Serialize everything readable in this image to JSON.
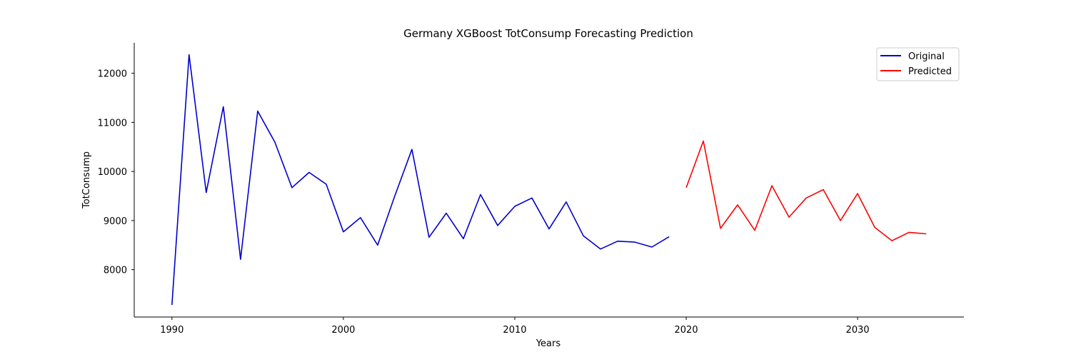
{
  "chart_data": {
    "type": "line",
    "title": "Germany XGBoost TotConsump Forecasting Prediction",
    "xlabel": "Years",
    "ylabel": "TotConsump",
    "xlim": [
      1987.8,
      2036.2
    ],
    "ylim": [
      7035,
      12620
    ],
    "xticks": [
      1990,
      2000,
      2010,
      2020,
      2030
    ],
    "yticks": [
      8000,
      9000,
      10000,
      11000,
      12000
    ],
    "grid": false,
    "legend_position": "top-right",
    "series": [
      {
        "name": "Original",
        "color": "#0000cd",
        "x": [
          1990,
          1991,
          1992,
          1993,
          1994,
          1995,
          1996,
          1997,
          1998,
          1999,
          2000,
          2001,
          2002,
          2003,
          2004,
          2005,
          2006,
          2007,
          2008,
          2009,
          2010,
          2011,
          2012,
          2013,
          2014,
          2015,
          2016,
          2017,
          2018,
          2019
        ],
        "y": [
          7280,
          12380,
          9570,
          11320,
          8210,
          11230,
          10600,
          9670,
          9980,
          9740,
          8770,
          9060,
          8500,
          9500,
          10450,
          8660,
          9150,
          8630,
          9530,
          8900,
          9290,
          9460,
          8830,
          9380,
          8690,
          8420,
          8580,
          8560,
          8460,
          8670
        ]
      },
      {
        "name": "Predicted",
        "color": "#ff0000",
        "x": [
          2020,
          2021,
          2022,
          2023,
          2024,
          2025,
          2026,
          2027,
          2028,
          2029,
          2030,
          2031,
          2032,
          2033,
          2034
        ],
        "y": [
          9670,
          10620,
          8840,
          9320,
          8800,
          9710,
          9070,
          9460,
          9630,
          9000,
          9550,
          8860,
          8590,
          8760,
          8730
        ]
      }
    ]
  }
}
